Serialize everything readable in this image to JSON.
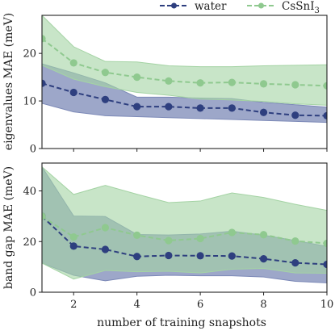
{
  "chart_data": [
    {
      "type": "line",
      "ylabel": "eigenvalues MAE (meV)",
      "xlim": [
        1,
        10
      ],
      "ylim": [
        0,
        28
      ],
      "yticks": [
        0,
        10,
        20
      ],
      "grid": false,
      "series": [
        {
          "name": "water",
          "color": "#2e3f7f",
          "band_color": "#7c89b7",
          "x": [
            1,
            2,
            3,
            4,
            5,
            6,
            7,
            8,
            9,
            10
          ],
          "mean": [
            13.7,
            11.8,
            10.3,
            8.8,
            8.8,
            8.5,
            8.5,
            7.6,
            7.0,
            6.9
          ],
          "lower": [
            9.5,
            7.7,
            6.9,
            6.7,
            6.5,
            6.3,
            6.1,
            5.9,
            5.7,
            5.5
          ],
          "upper": [
            17.8,
            15.9,
            13.8,
            10.8,
            10.8,
            10.6,
            10.5,
            9.7,
            9.2,
            8.7
          ]
        },
        {
          "name": "CsSnI3",
          "color": "#8fc98f",
          "band_color": "#a4d3a4",
          "x": [
            1,
            2,
            3,
            4,
            5,
            6,
            7,
            8,
            9,
            10
          ],
          "mean": [
            23.1,
            18.0,
            16.0,
            15.0,
            14.2,
            13.8,
            13.9,
            13.6,
            13.4,
            13.2
          ],
          "lower": [
            17.5,
            14.6,
            13.0,
            11.8,
            11.2,
            10.4,
            10.2,
            9.9,
            9.4,
            9.1
          ],
          "upper": [
            28.0,
            21.4,
            18.3,
            18.2,
            17.4,
            17.2,
            17.2,
            17.4,
            17.5,
            17.6
          ]
        }
      ]
    },
    {
      "type": "line",
      "xlabel": "number of training snapshots",
      "ylabel": "band gap MAE (meV)",
      "xlim": [
        1,
        10
      ],
      "ylim": [
        0,
        51
      ],
      "xticks": [
        2,
        4,
        6,
        8,
        10
      ],
      "yticks": [
        0,
        20,
        40
      ],
      "grid": false,
      "series": [
        {
          "name": "water",
          "color": "#2e3f7f",
          "band_color": "#7c89b7",
          "x": [
            1,
            2,
            3,
            4,
            5,
            6,
            7,
            8,
            9,
            10
          ],
          "mean": [
            30.0,
            18.2,
            16.9,
            14.1,
            14.5,
            14.4,
            14.3,
            13.2,
            11.6,
            11.0
          ],
          "lower": [
            11.5,
            6.7,
            4.5,
            6.3,
            6.7,
            6.5,
            6.5,
            6.0,
            4.3,
            3.7
          ],
          "upper": [
            49.5,
            30.1,
            29.9,
            22.8,
            22.6,
            23.0,
            24.1,
            22.5,
            20.4,
            18.1
          ]
        },
        {
          "name": "CsSnI3",
          "color": "#8fc98f",
          "band_color": "#a4d3a4",
          "x": [
            1,
            2,
            3,
            4,
            5,
            6,
            7,
            8,
            9,
            10
          ],
          "mean": [
            30.0,
            21.8,
            25.5,
            22.5,
            20.4,
            21.2,
            23.6,
            22.7,
            20.2,
            19.3
          ],
          "lower": [
            11.5,
            5.2,
            8.6,
            8.1,
            8.3,
            7.6,
            9.1,
            9.4,
            7.6,
            7.5
          ],
          "upper": [
            49.5,
            38.6,
            42.2,
            38.7,
            35.4,
            36.0,
            39.2,
            37.4,
            34.7,
            32.3
          ]
        }
      ]
    }
  ],
  "legend": {
    "placement": "top-center",
    "entries": [
      {
        "label": "water",
        "color": "#2e3f7f"
      },
      {
        "label": "CsSnI3",
        "color": "#8fc98f"
      }
    ]
  }
}
